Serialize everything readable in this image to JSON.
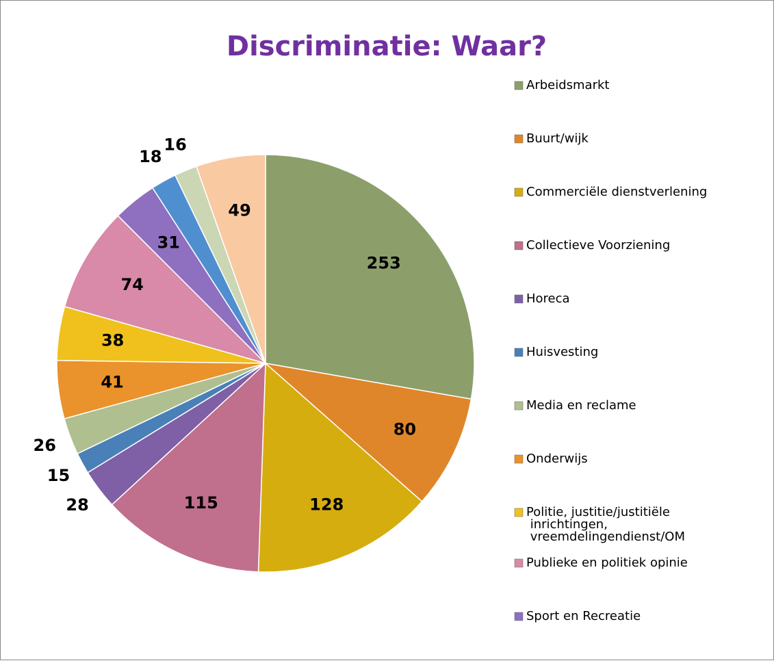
{
  "chart_data": {
    "type": "pie",
    "title": "Discriminatie: Waar?",
    "categories": [
      "Arbeidsmarkt",
      "Buurt/wijk",
      "Commerciële dienstverlening",
      "Collectieve Voorziening",
      "Horeca",
      "Huisvesting",
      "Media en reclame",
      "Onderwijs",
      "Politie, justitie/justitiële inrichtingen, vreemdelingendienst/OM",
      "Publieke en politiek opinie",
      "Sport en Recreatie",
      null,
      null,
      null
    ],
    "values": [
      253,
      80,
      128,
      115,
      28,
      15,
      26,
      41,
      38,
      74,
      31,
      18,
      16,
      49
    ],
    "colors": [
      "#8c9f6b",
      "#e0862a",
      "#d6ad0e",
      "#c06f8c",
      "#7f5fa6",
      "#4a80b8",
      "#afbf8f",
      "#ea922c",
      "#f0c11c",
      "#d98aa8",
      "#8f6fc0",
      "#4f8fd0",
      "#cbd6b4",
      "#f9c9a2"
    ],
    "legend": "right"
  }
}
